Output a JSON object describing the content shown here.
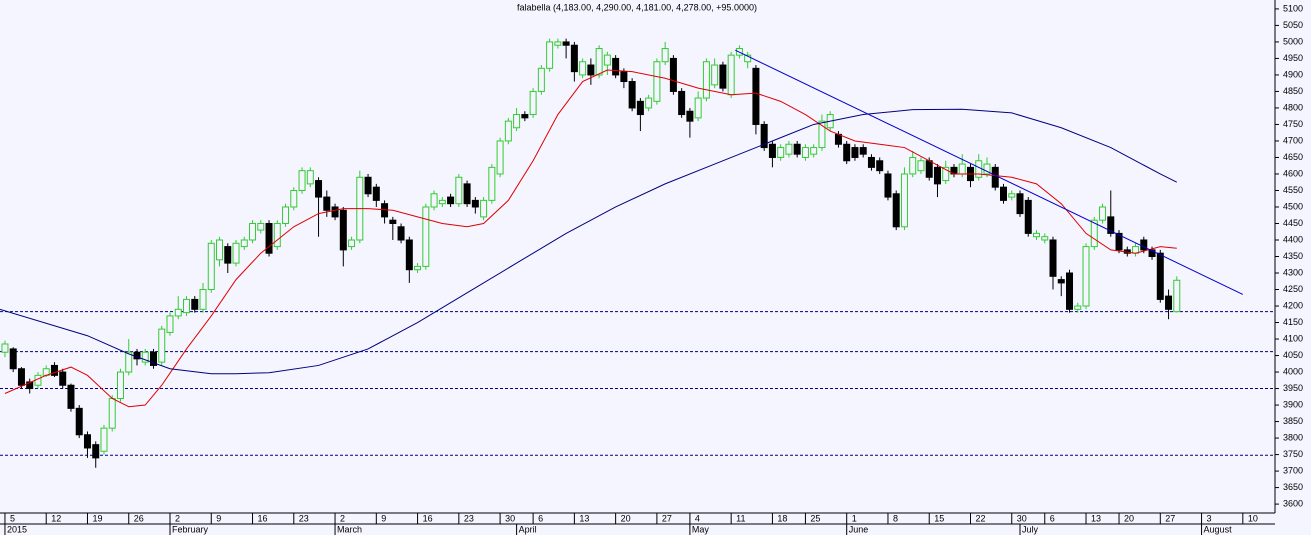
{
  "chart_data": {
    "type": "candlestick",
    "title": "falabella (4,183.00, 4,290.00, 4,181.00, 4,278.00, +95.0000)",
    "up_color": "#33cc33",
    "down_color": "#000000",
    "xlim": [
      -0.6,
      153.9
    ],
    "ylim": [
      3573,
      5127
    ],
    "yticks": [
      3600,
      3650,
      3700,
      3750,
      3800,
      3850,
      3900,
      3950,
      4000,
      4050,
      4100,
      4150,
      4200,
      4250,
      4300,
      4350,
      4400,
      4450,
      4500,
      4550,
      4600,
      4650,
      4700,
      4750,
      4800,
      4850,
      4900,
      4950,
      5000,
      5050,
      5100
    ],
    "xticks": [
      {
        "value": 0,
        "label": "5"
      },
      {
        "value": 5,
        "label": "12"
      },
      {
        "value": 10,
        "label": "19"
      },
      {
        "value": 15,
        "label": "26"
      },
      {
        "value": 20,
        "label": "2"
      },
      {
        "value": 25,
        "label": "9"
      },
      {
        "value": 30,
        "label": "16"
      },
      {
        "value": 35,
        "label": "23"
      },
      {
        "value": 40,
        "label": "2"
      },
      {
        "value": 45,
        "label": "9"
      },
      {
        "value": 50,
        "label": "16"
      },
      {
        "value": 55,
        "label": "23"
      },
      {
        "value": 60,
        "label": "30"
      },
      {
        "value": 64,
        "label": "6"
      },
      {
        "value": 69,
        "label": "13"
      },
      {
        "value": 74,
        "label": "20"
      },
      {
        "value": 79,
        "label": "27"
      },
      {
        "value": 83,
        "label": "4"
      },
      {
        "value": 88,
        "label": "11"
      },
      {
        "value": 93,
        "label": "18"
      },
      {
        "value": 97,
        "label": "25"
      },
      {
        "value": 102,
        "label": "1"
      },
      {
        "value": 107,
        "label": "8"
      },
      {
        "value": 112,
        "label": "15"
      },
      {
        "value": 117,
        "label": "22"
      },
      {
        "value": 122,
        "label": "30"
      },
      {
        "value": 126,
        "label": "6"
      },
      {
        "value": 131,
        "label": "13"
      },
      {
        "value": 135,
        "label": "20"
      },
      {
        "value": 140,
        "label": "27"
      },
      {
        "value": 145,
        "label": "3"
      },
      {
        "value": 150,
        "label": "10"
      }
    ],
    "month_ticks": [
      {
        "value": 0,
        "label": "2015"
      },
      {
        "value": 20,
        "label": "February"
      },
      {
        "value": 40,
        "label": "March"
      },
      {
        "value": 62,
        "label": "April"
      },
      {
        "value": 83,
        "label": "May"
      },
      {
        "value": 102,
        "label": "June"
      },
      {
        "value": 123,
        "label": "July"
      },
      {
        "value": 145,
        "label": "August"
      }
    ],
    "open": [
      4060,
      4070,
      4010,
      3970,
      3960,
      3990,
      4020,
      4000,
      3960,
      3890,
      3810,
      3780,
      3760,
      3830,
      3920,
      4000,
      4060,
      4030,
      4060,
      4030,
      4120,
      4170,
      4180,
      4220,
      4190,
      4250,
      4340,
      4380,
      4330,
      4380,
      4400,
      4430,
      4450,
      4380,
      4450,
      4500,
      4550,
      4570,
      4580,
      4530,
      4500,
      4490,
      4380,
      4400,
      4590,
      4560,
      4510,
      4460,
      4440,
      4400,
      4310,
      4320,
      4500,
      4510,
      4530,
      4510,
      4570,
      4520,
      4470,
      4520,
      4600,
      4700,
      4740,
      4780,
      4780,
      4850,
      4920,
      4990,
      5000,
      4990,
      4900,
      4930,
      4900,
      4930,
      4950,
      4910,
      4880,
      4820,
      4800,
      4820,
      4940,
      4950,
      4850,
      4790,
      4770,
      4830,
      4870,
      4930,
      4840,
      4960,
      4940,
      4920,
      4750,
      4690,
      4650,
      4660,
      4690,
      4650,
      4660,
      4680,
      4740,
      4720,
      4690,
      4680,
      4680,
      4650,
      4640,
      4600,
      4540,
      4440,
      4600,
      4610,
      4640,
      4620,
      4580,
      4620,
      4600,
      4620,
      4590,
      4600,
      4620,
      4560,
      4530,
      4540,
      4520,
      4410,
      4400,
      4400,
      4280,
      4300,
      4190,
      4200,
      4380,
      4460,
      4470,
      4420,
      4370,
      4360,
      4400,
      4370,
      4360,
      4230,
      4183
    ],
    "high": [
      4095,
      4075,
      4015,
      3980,
      4000,
      4020,
      4030,
      4010,
      3965,
      3900,
      3820,
      3790,
      3840,
      3930,
      4010,
      4100,
      4070,
      4070,
      4070,
      4140,
      4180,
      4230,
      4230,
      4230,
      4270,
      4400,
      4410,
      4390,
      4400,
      4410,
      4460,
      4460,
      4460,
      4460,
      4510,
      4560,
      4620,
      4620,
      4590,
      4550,
      4510,
      4500,
      4410,
      4610,
      4600,
      4570,
      4520,
      4470,
      4450,
      4410,
      4330,
      4510,
      4550,
      4530,
      4540,
      4600,
      4580,
      4530,
      4530,
      4630,
      4710,
      4770,
      4800,
      4790,
      4860,
      4930,
      5010,
      5010,
      5010,
      5000,
      4950,
      4950,
      4990,
      4970,
      4960,
      4920,
      4890,
      4830,
      4840,
      4950,
      5000,
      4960,
      4860,
      4800,
      4850,
      4950,
      4950,
      4940,
      4970,
      4990,
      4970,
      4930,
      4760,
      4700,
      4690,
      4700,
      4700,
      4690,
      4690,
      4780,
      4790,
      4730,
      4700,
      4690,
      4690,
      4660,
      4650,
      4610,
      4550,
      4620,
      4670,
      4650,
      4650,
      4630,
      4640,
      4630,
      4660,
      4630,
      4660,
      4650,
      4630,
      4570,
      4550,
      4550,
      4530,
      4430,
      4420,
      4410,
      4290,
      4310,
      4210,
      4390,
      4470,
      4510,
      4550,
      4430,
      4380,
      4390,
      4410,
      4380,
      4370,
      4250,
      4290
    ],
    "low": [
      4045,
      4000,
      3950,
      3935,
      3950,
      3985,
      3985,
      3950,
      3880,
      3800,
      3740,
      3710,
      3750,
      3820,
      3910,
      3990,
      4020,
      4020,
      4010,
      4020,
      4110,
      4160,
      4170,
      4180,
      4180,
      4240,
      4320,
      4300,
      4320,
      4370,
      4390,
      4420,
      4350,
      4370,
      4440,
      4490,
      4540,
      4560,
      4410,
      4470,
      4460,
      4320,
      4370,
      4390,
      4530,
      4500,
      4450,
      4400,
      4390,
      4270,
      4300,
      4310,
      4490,
      4500,
      4500,
      4500,
      4500,
      4480,
      4460,
      4510,
      4590,
      4690,
      4730,
      4760,
      4770,
      4840,
      4910,
      4980,
      4950,
      4880,
      4890,
      4870,
      4890,
      4900,
      4890,
      4860,
      4790,
      4730,
      4790,
      4810,
      4930,
      4840,
      4770,
      4710,
      4760,
      4820,
      4860,
      4850,
      4830,
      4950,
      4920,
      4720,
      4670,
      4620,
      4640,
      4650,
      4650,
      4640,
      4650,
      4670,
      4730,
      4680,
      4630,
      4640,
      4650,
      4610,
      4600,
      4520,
      4430,
      4430,
      4590,
      4600,
      4580,
      4530,
      4570,
      4590,
      4590,
      4560,
      4580,
      4590,
      4550,
      4510,
      4520,
      4470,
      4410,
      4400,
      4390,
      4250,
      4230,
      4180,
      4180,
      4190,
      4370,
      4450,
      4410,
      4360,
      4350,
      4350,
      4360,
      4340,
      4210,
      4160,
      4181
    ],
    "close": [
      4085,
      4010,
      3960,
      3950,
      3990,
      4010,
      3990,
      3960,
      3890,
      3810,
      3770,
      3740,
      3830,
      3920,
      4000,
      4060,
      4040,
      4060,
      4020,
      4130,
      4170,
      4190,
      4220,
      4190,
      4250,
      4390,
      4400,
      4330,
      4390,
      4400,
      4450,
      4450,
      4360,
      4450,
      4500,
      4550,
      4610,
      4610,
      4530,
      4490,
      4470,
      4370,
      4400,
      4590,
      4540,
      4520,
      4470,
      4450,
      4400,
      4310,
      4320,
      4500,
      4540,
      4520,
      4510,
      4590,
      4510,
      4500,
      4520,
      4620,
      4700,
      4760,
      4780,
      4770,
      4850,
      4920,
      5000,
      5000,
      4990,
      4910,
      4940,
      4900,
      4980,
      4960,
      4900,
      4880,
      4800,
      4780,
      4830,
      4940,
      4980,
      4850,
      4780,
      4760,
      4830,
      4940,
      4930,
      4860,
      4960,
      4980,
      4960,
      4750,
      4680,
      4650,
      4680,
      4690,
      4660,
      4680,
      4680,
      4760,
      4780,
      4690,
      4640,
      4650,
      4660,
      4620,
      4610,
      4530,
      4440,
      4600,
      4650,
      4640,
      4590,
      4570,
      4620,
      4600,
      4630,
      4580,
      4640,
      4630,
      4560,
      4520,
      4540,
      4480,
      4420,
      4420,
      4410,
      4290,
      4270,
      4190,
      4200,
      4380,
      4460,
      4500,
      4420,
      4370,
      4360,
      4380,
      4370,
      4350,
      4220,
      4190,
      4278
    ],
    "lines": [
      {
        "color": "#e00000",
        "x": [
          0,
          5,
          8,
          10,
          13,
          15,
          17,
          19,
          22,
          25,
          28,
          31,
          35,
          38,
          41,
          44,
          47,
          50,
          53,
          56,
          58,
          61,
          64,
          67,
          70,
          73,
          76,
          80,
          84,
          88,
          91,
          94,
          97,
          100,
          103,
          106,
          109,
          112,
          115,
          118,
          122,
          125,
          128,
          131,
          134,
          137,
          140,
          142
        ],
        "values": [
          3935,
          3990,
          4015,
          3990,
          3920,
          3895,
          3900,
          3960,
          4070,
          4170,
          4280,
          4360,
          4440,
          4480,
          4495,
          4495,
          4490,
          4470,
          4450,
          4440,
          4450,
          4520,
          4640,
          4780,
          4880,
          4915,
          4910,
          4890,
          4860,
          4840,
          4845,
          4820,
          4780,
          4730,
          4700,
          4690,
          4680,
          4640,
          4600,
          4600,
          4590,
          4570,
          4510,
          4420,
          4370,
          4360,
          4380,
          4375
        ]
      },
      {
        "color": "#000080",
        "x": [
          -0.6,
          10,
          15,
          20,
          25,
          28,
          32,
          38,
          44,
          50,
          56,
          62,
          68,
          74,
          80,
          86,
          92,
          98,
          104,
          110,
          116,
          122,
          128,
          134,
          140,
          142
        ],
        "values": [
          4190,
          4110,
          4055,
          4010,
          3995,
          3995,
          3998,
          4020,
          4070,
          4150,
          4240,
          4330,
          4420,
          4500,
          4570,
          4630,
          4690,
          4750,
          4780,
          4795,
          4796,
          4785,
          4740,
          4680,
          4600,
          4575
        ]
      },
      {
        "color": "#0000cc",
        "x": [
          88.5,
          150
        ],
        "values": [
          4975,
          4235
        ]
      }
    ],
    "hlines": [
      {
        "value": 4183,
        "color": "#000080"
      },
      {
        "value": 4062,
        "color": "#000080"
      },
      {
        "value": 3950,
        "color": "#000080"
      },
      {
        "value": 3748,
        "color": "#000080"
      }
    ]
  }
}
